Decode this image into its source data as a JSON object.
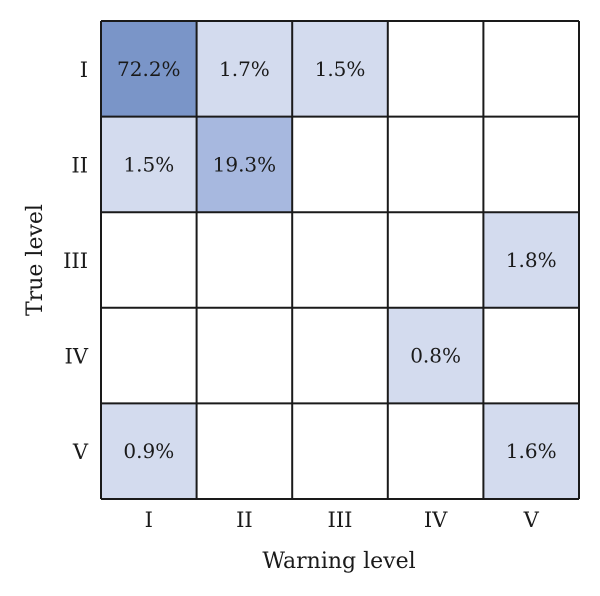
{
  "chart_data": {
    "type": "heatmap",
    "title": "",
    "xlabel": "Warning level",
    "ylabel": "True level",
    "x_categories": [
      "I",
      "II",
      "III",
      "IV",
      "V"
    ],
    "y_categories": [
      "I",
      "II",
      "III",
      "IV",
      "V"
    ],
    "cells": [
      {
        "row": 0,
        "col": 0,
        "value": 72.2,
        "label": "72.2%"
      },
      {
        "row": 0,
        "col": 1,
        "value": 1.7,
        "label": "1.7%"
      },
      {
        "row": 0,
        "col": 2,
        "value": 1.5,
        "label": "1.5%"
      },
      {
        "row": 1,
        "col": 0,
        "value": 1.5,
        "label": "1.5%"
      },
      {
        "row": 1,
        "col": 1,
        "value": 19.3,
        "label": "19.3%"
      },
      {
        "row": 2,
        "col": 4,
        "value": 1.8,
        "label": "1.8%"
      },
      {
        "row": 3,
        "col": 3,
        "value": 0.8,
        "label": "0.8%"
      },
      {
        "row": 4,
        "col": 0,
        "value": 0.9,
        "label": "0.9%"
      },
      {
        "row": 4,
        "col": 4,
        "value": 1.6,
        "label": "1.6%"
      }
    ],
    "colors": {
      "high": "#7a95c8",
      "medium": "#a7b8df",
      "low": "#d3dbee",
      "empty": "#ffffff",
      "grid": "#1a1a1a"
    }
  }
}
